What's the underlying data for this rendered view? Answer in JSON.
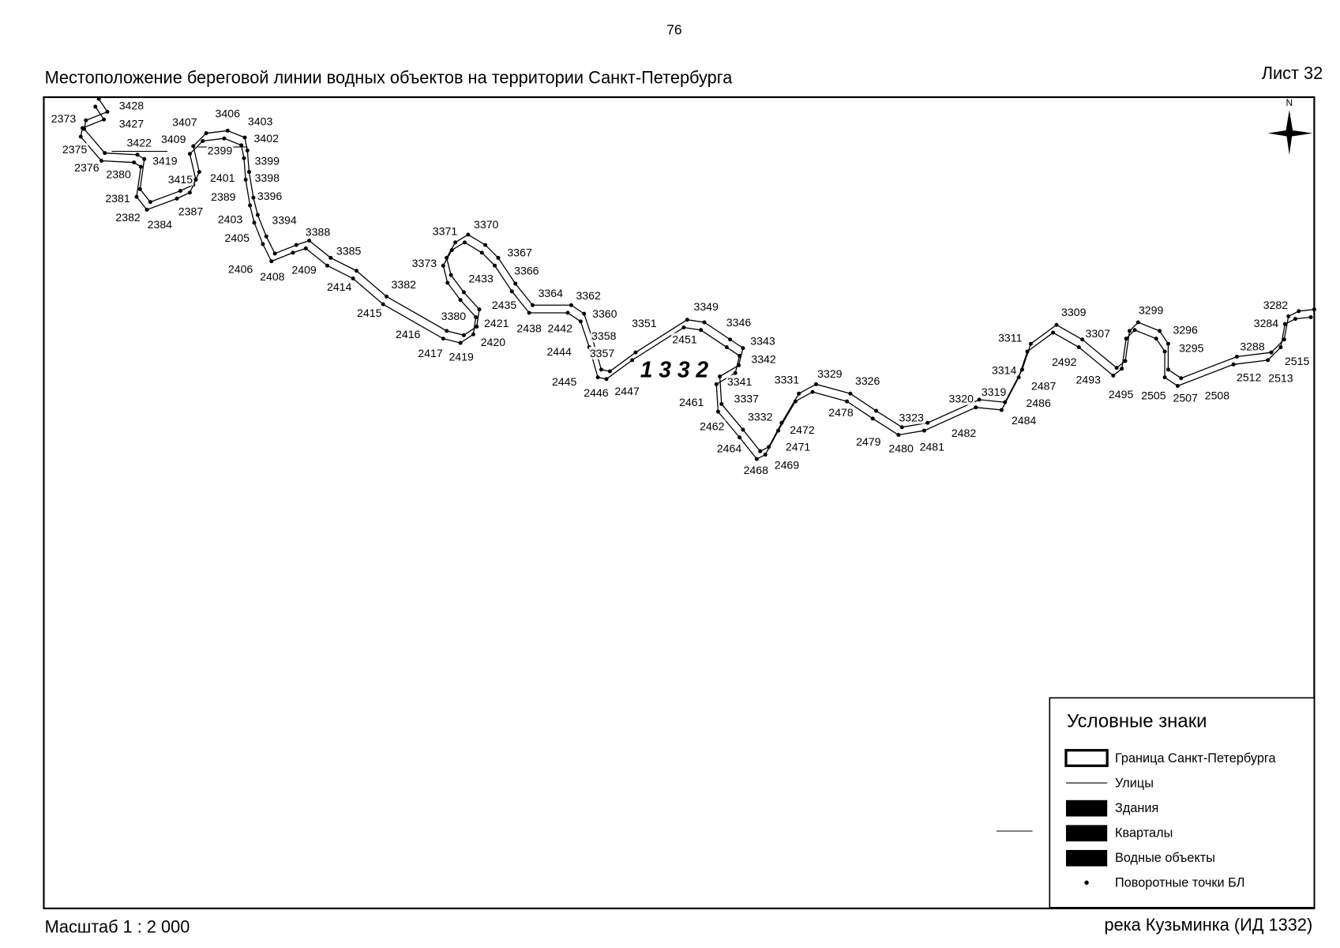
{
  "header": {
    "page_number": "76",
    "title": "Местоположение береговой линии водных объектов на территории Санкт-Петербурга",
    "sheet": "Лист 32"
  },
  "map": {
    "river_label": "1 3 3 2",
    "north": "N",
    "point_labels": [
      "3428",
      "2373",
      "3427",
      "3407",
      "3406",
      "3403",
      "3409",
      "3402",
      "3422",
      "2375",
      "2399",
      "3419",
      "3399",
      "2376",
      "2380",
      "3415",
      "2401",
      "3398",
      "2381",
      "2389",
      "3396",
      "2387",
      "2382",
      "2384",
      "2403",
      "3394",
      "3388",
      "2405",
      "3385",
      "2406",
      "2408",
      "2409",
      "2414",
      "3382",
      "2415",
      "3371",
      "3370",
      "3367",
      "3373",
      "3366",
      "2433",
      "3364",
      "3362",
      "2435",
      "3360",
      "3380",
      "2421",
      "2438",
      "2442",
      "3351",
      "3349",
      "3346",
      "2451",
      "3358",
      "3343",
      "2416",
      "2420",
      "2444",
      "3357",
      "3342",
      "2417",
      "2419",
      "2445",
      "3341",
      "3331",
      "3329",
      "3326",
      "2446",
      "2447",
      "2461",
      "3337",
      "2478",
      "3332",
      "2462",
      "2472",
      "2479",
      "2480",
      "2481",
      "3323",
      "3320",
      "3319",
      "2482",
      "2484",
      "2486",
      "2487",
      "3314",
      "2464",
      "2471",
      "2468",
      "2469",
      "3311",
      "3309",
      "3307",
      "2492",
      "2493",
      "3299",
      "3296",
      "3295",
      "2495",
      "2505",
      "2507",
      "2508",
      "3288",
      "2512",
      "2513",
      "2515",
      "3282",
      "3284"
    ]
  },
  "legend": {
    "title": "Условные знаки",
    "items": [
      "Граница Санкт-Петербурга",
      "Улицы",
      "Здания",
      "Кварталы",
      "Водные объекты",
      "Поворотные точки БЛ"
    ]
  },
  "footer": {
    "scale": "Масштаб 1 : 2 000",
    "object": "река Кузьминка (ИД 1332)"
  }
}
